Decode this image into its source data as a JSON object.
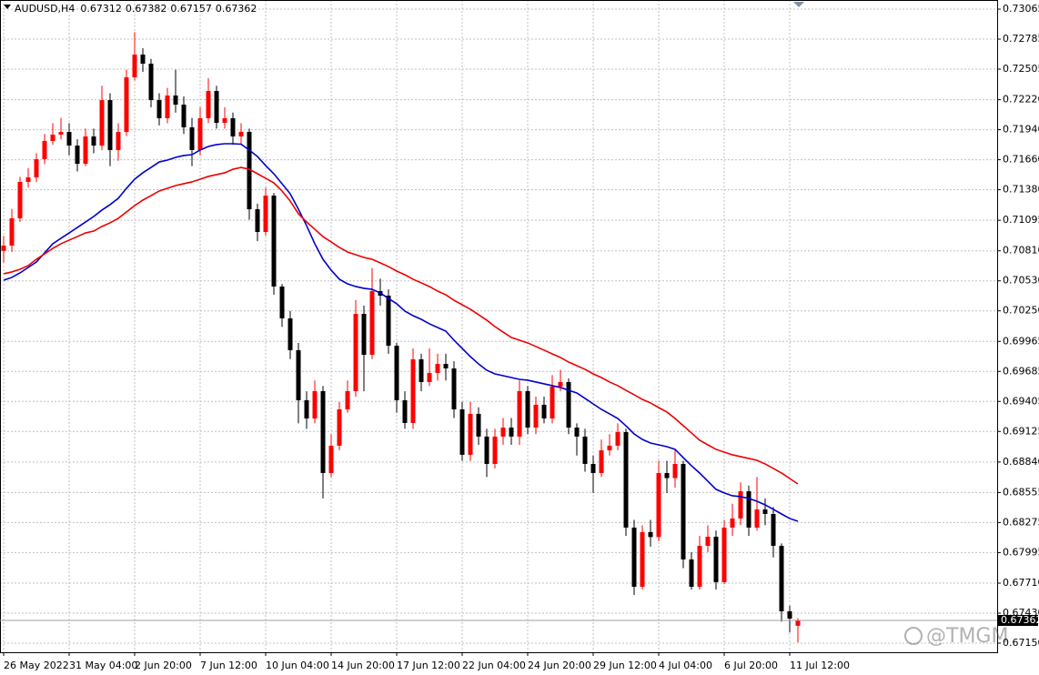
{
  "chart_data": {
    "type": "candlestick",
    "title": "AUDUSD,H4",
    "watermark": "@TMGM",
    "categories": [
      "26 May 2022",
      null,
      null,
      null,
      null,
      null,
      null,
      null,
      "31 May 04:00",
      null,
      null,
      null,
      null,
      null,
      null,
      null,
      "2 Jun 20:00",
      null,
      null,
      null,
      null,
      null,
      null,
      null,
      "7 Jun 12:00",
      null,
      null,
      null,
      null,
      null,
      null,
      null,
      "10 Jun 04:00",
      null,
      null,
      null,
      null,
      null,
      null,
      null,
      "14 Jun 20:00",
      null,
      null,
      null,
      null,
      null,
      null,
      null,
      "17 Jun 12:00",
      null,
      null,
      null,
      null,
      null,
      null,
      null,
      "22 Jun 04:00",
      null,
      null,
      null,
      null,
      null,
      null,
      null,
      "24 Jun 20:00",
      null,
      null,
      null,
      null,
      null,
      null,
      null,
      "29 Jun 12:00",
      null,
      null,
      null,
      null,
      null,
      null,
      null,
      "4 Jul 04:00",
      null,
      null,
      null,
      null,
      null,
      null,
      null,
      "6 Jul 20:00",
      null,
      null,
      null,
      null,
      null,
      null,
      null,
      "11 Jul 12:00",
      null
    ],
    "open": [
      0.7081,
      0.70859,
      0.71113,
      0.71453,
      0.71495,
      0.71665,
      0.71835,
      0.71894,
      0.71919,
      0.71792,
      0.71622,
      0.71877,
      0.71792,
      0.72216,
      0.7175,
      0.71919,
      0.72429,
      0.72641,
      0.72556,
      0.72216,
      0.72047,
      0.72259,
      0.72174,
      0.71962,
      0.7175,
      0.72047,
      0.72301,
      0.72004,
      0.72047,
      0.71877,
      0.7192,
      0.71198,
      0.70986,
      0.71325,
      0.70477,
      0.7018,
      0.69883,
      0.69416,
      0.69246,
      0.69501,
      0.68737,
      0.68992,
      0.69331,
      0.69501,
      0.70222,
      0.6984,
      0.70434,
      0.70392,
      0.69925,
      0.69416,
      0.69204,
      0.69798,
      0.69586,
      0.69671,
      0.69755,
      0.69713,
      0.69331,
      0.68907,
      0.69289,
      0.69077,
      0.68822,
      0.69077,
      0.69161,
      0.69077,
      0.69501,
      0.69161,
      0.69374,
      0.69246,
      0.69543,
      0.69586,
      0.69161,
      0.69077,
      0.68822,
      0.68737,
      0.68949,
      0.68992,
      0.69119,
      0.68228,
      0.67676,
      0.68186,
      0.6814,
      0.68737,
      0.6869,
      0.68822,
      0.67931,
      0.67676,
      0.68058,
      0.68143,
      0.67719,
      0.68228,
      0.68313,
      0.68567,
      0.68228,
      0.68398,
      0.68355,
      0.68058,
      0.67447,
      0.67312
    ],
    "high": [
      0.7095,
      0.712,
      0.715,
      0.7158,
      0.7172,
      0.719,
      0.72,
      0.7205,
      0.72,
      0.7185,
      0.7195,
      0.7195,
      0.7235,
      0.7228,
      0.72,
      0.725,
      0.7285,
      0.727,
      0.726,
      0.7228,
      0.7233,
      0.725,
      0.7225,
      0.7205,
      0.7215,
      0.7242,
      0.7235,
      0.7215,
      0.721,
      0.72,
      0.7195,
      0.7125,
      0.714,
      0.7135,
      0.705,
      0.7025,
      0.6995,
      0.695,
      0.696,
      0.6955,
      0.691,
      0.694,
      0.696,
      0.7035,
      0.703,
      0.7065,
      0.7055,
      0.7045,
      0.6995,
      0.695,
      0.699,
      0.6985,
      0.699,
      0.6985,
      0.6985,
      0.6978,
      0.694,
      0.694,
      0.6935,
      0.6915,
      0.6915,
      0.6925,
      0.6925,
      0.696,
      0.6955,
      0.6945,
      0.6945,
      0.6965,
      0.697,
      0.6962,
      0.692,
      0.6915,
      0.689,
      0.6905,
      0.691,
      0.692,
      0.6915,
      0.683,
      0.6825,
      0.683,
      0.6885,
      0.6885,
      0.6895,
      0.6885,
      0.68,
      0.6815,
      0.6825,
      0.682,
      0.683,
      0.6845,
      0.6865,
      0.6862,
      0.687,
      0.685,
      0.6842,
      0.6808,
      0.675,
      0.67382
    ],
    "low": [
      0.707,
      0.708,
      0.7108,
      0.714,
      0.7145,
      0.7162,
      0.718,
      0.7185,
      0.717,
      0.7155,
      0.716,
      0.7172,
      0.7175,
      0.716,
      0.7165,
      0.7188,
      0.724,
      0.7248,
      0.7215,
      0.7198,
      0.72,
      0.721,
      0.719,
      0.716,
      0.717,
      0.72,
      0.7195,
      0.7195,
      0.718,
      0.718,
      0.711,
      0.709,
      0.7095,
      0.704,
      0.701,
      0.698,
      0.692,
      0.6915,
      0.692,
      0.685,
      0.687,
      0.6895,
      0.693,
      0.6945,
      0.695,
      0.698,
      0.703,
      0.6985,
      0.693,
      0.6915,
      0.6915,
      0.695,
      0.6955,
      0.696,
      0.696,
      0.6925,
      0.6885,
      0.6885,
      0.69,
      0.687,
      0.6878,
      0.69,
      0.69,
      0.69,
      0.691,
      0.691,
      0.692,
      0.692,
      0.695,
      0.691,
      0.689,
      0.6875,
      0.6855,
      0.687,
      0.689,
      0.6895,
      0.6815,
      0.676,
      0.6765,
      0.6805,
      0.681,
      0.6855,
      0.686,
      0.6785,
      0.6765,
      0.6765,
      0.68,
      0.6765,
      0.677,
      0.6815,
      0.6825,
      0.6815,
      0.682,
      0.6825,
      0.6795,
      0.6735,
      0.6725,
      0.67157
    ],
    "close": [
      0.70859,
      0.71113,
      0.71453,
      0.71495,
      0.71665,
      0.71835,
      0.71894,
      0.71919,
      0.71792,
      0.71622,
      0.71877,
      0.71792,
      0.72216,
      0.7175,
      0.71919,
      0.72429,
      0.72641,
      0.72556,
      0.72216,
      0.72047,
      0.72259,
      0.72174,
      0.71962,
      0.7175,
      0.72047,
      0.72301,
      0.72004,
      0.72047,
      0.71877,
      0.7192,
      0.71198,
      0.70986,
      0.71325,
      0.70477,
      0.7018,
      0.69883,
      0.69416,
      0.69246,
      0.69501,
      0.68737,
      0.68992,
      0.69331,
      0.69501,
      0.70222,
      0.6984,
      0.70434,
      0.70392,
      0.69925,
      0.69416,
      0.69204,
      0.69798,
      0.69586,
      0.69671,
      0.69755,
      0.69713,
      0.69331,
      0.68907,
      0.69289,
      0.69077,
      0.68822,
      0.69077,
      0.69161,
      0.69077,
      0.69501,
      0.69161,
      0.69374,
      0.69246,
      0.69543,
      0.69586,
      0.69161,
      0.69077,
      0.68822,
      0.68737,
      0.68949,
      0.68992,
      0.69119,
      0.68228,
      0.67676,
      0.68186,
      0.6814,
      0.68737,
      0.6869,
      0.68822,
      0.67931,
      0.67676,
      0.68058,
      0.68143,
      0.67719,
      0.68228,
      0.68313,
      0.68567,
      0.68228,
      0.68398,
      0.68355,
      0.68058,
      0.67447,
      0.67379,
      0.67362
    ],
    "up_color": "#ff0000",
    "down_color": "#000000",
    "overlays": [
      {
        "color": "#0000cc",
        "values": [
          0.70536,
          0.70562,
          0.70604,
          0.70655,
          0.70706,
          0.70791,
          0.70876,
          0.70927,
          0.70977,
          0.71028,
          0.71079,
          0.7113,
          0.7119,
          0.71241,
          0.713,
          0.71393,
          0.71478,
          0.71538,
          0.71588,
          0.71639,
          0.71656,
          0.71682,
          0.71699,
          0.71707,
          0.7175,
          0.71784,
          0.71801,
          0.71809,
          0.71809,
          0.71805,
          0.7175,
          0.7169,
          0.71605,
          0.71529,
          0.71436,
          0.71342,
          0.71198,
          0.71045,
          0.70876,
          0.70731,
          0.7063,
          0.70545,
          0.70502,
          0.70477,
          0.7046,
          0.70451,
          0.70417,
          0.70366,
          0.70316,
          0.70248,
          0.70205,
          0.70171,
          0.70129,
          0.70095,
          0.70061,
          0.69976,
          0.699,
          0.69823,
          0.69755,
          0.69696,
          0.69662,
          0.69645,
          0.69628,
          0.69611,
          0.69603,
          0.69586,
          0.69569,
          0.69552,
          0.69535,
          0.69509,
          0.69484,
          0.69433,
          0.69382,
          0.69331,
          0.69289,
          0.69246,
          0.69178,
          0.69102,
          0.69051,
          0.69017,
          0.69,
          0.68983,
          0.68958,
          0.68881,
          0.68805,
          0.68737,
          0.68661,
          0.68585,
          0.68551,
          0.68525,
          0.68517,
          0.685,
          0.68474,
          0.6844,
          0.68398,
          0.68355,
          0.68313,
          0.68287
        ]
      },
      {
        "color": "#ee0000",
        "values": [
          0.70596,
          0.70613,
          0.70638,
          0.70672,
          0.70731,
          0.70782,
          0.70833,
          0.70876,
          0.7091,
          0.70943,
          0.70977,
          0.70994,
          0.71037,
          0.71071,
          0.71113,
          0.71173,
          0.71232,
          0.71283,
          0.71325,
          0.71368,
          0.71393,
          0.71419,
          0.71436,
          0.71453,
          0.71478,
          0.71504,
          0.71521,
          0.71538,
          0.71571,
          0.71588,
          0.71571,
          0.71529,
          0.71487,
          0.71444,
          0.71368,
          0.71274,
          0.71156,
          0.71079,
          0.71011,
          0.70943,
          0.70893,
          0.70842,
          0.70799,
          0.70774,
          0.70748,
          0.70731,
          0.70697,
          0.70663,
          0.70621,
          0.70587,
          0.70545,
          0.70511,
          0.70477,
          0.70434,
          0.704,
          0.70349,
          0.70307,
          0.70265,
          0.70214,
          0.70163,
          0.70103,
          0.70052,
          0.70002,
          0.69976,
          0.69951,
          0.69917,
          0.69883,
          0.69849,
          0.69815,
          0.69772,
          0.69738,
          0.69705,
          0.69662,
          0.69628,
          0.69586,
          0.69552,
          0.69509,
          0.69467,
          0.69424,
          0.69391,
          0.69348,
          0.69306,
          0.69246,
          0.69178,
          0.69111,
          0.69043,
          0.69,
          0.68958,
          0.68932,
          0.68907,
          0.6889,
          0.68873,
          0.68856,
          0.68822,
          0.6878,
          0.68737,
          0.68686,
          0.68635
        ]
      }
    ],
    "ylim": [
      0.67065,
      0.7315
    ],
    "yticks": [
      0.73065,
      0.72785,
      0.72505,
      {
        "value": 0.7222,
        "label": "0.72220"
      },
      {
        "value": 0.7194,
        "label": "0.71940"
      },
      {
        "value": 0.7166,
        "label": "0.71660"
      },
      {
        "value": 0.7138,
        "label": "0.71380"
      },
      0.71095,
      {
        "value": 0.7081,
        "label": "0.70810"
      },
      {
        "value": 0.7053,
        "label": "0.70530"
      },
      {
        "value": 0.7025,
        "label": "0.70250"
      },
      0.69965,
      0.69685,
      0.69405,
      0.69125,
      {
        "value": 0.6884,
        "label": "0.68840"
      },
      0.68555,
      0.68275,
      0.67995,
      {
        "value": 0.6771,
        "label": "0.67710"
      },
      {
        "value": 0.6743,
        "label": "0.67430"
      },
      {
        "value": 0.6715,
        "label": "0.67150"
      }
    ],
    "grid": true
  }
}
